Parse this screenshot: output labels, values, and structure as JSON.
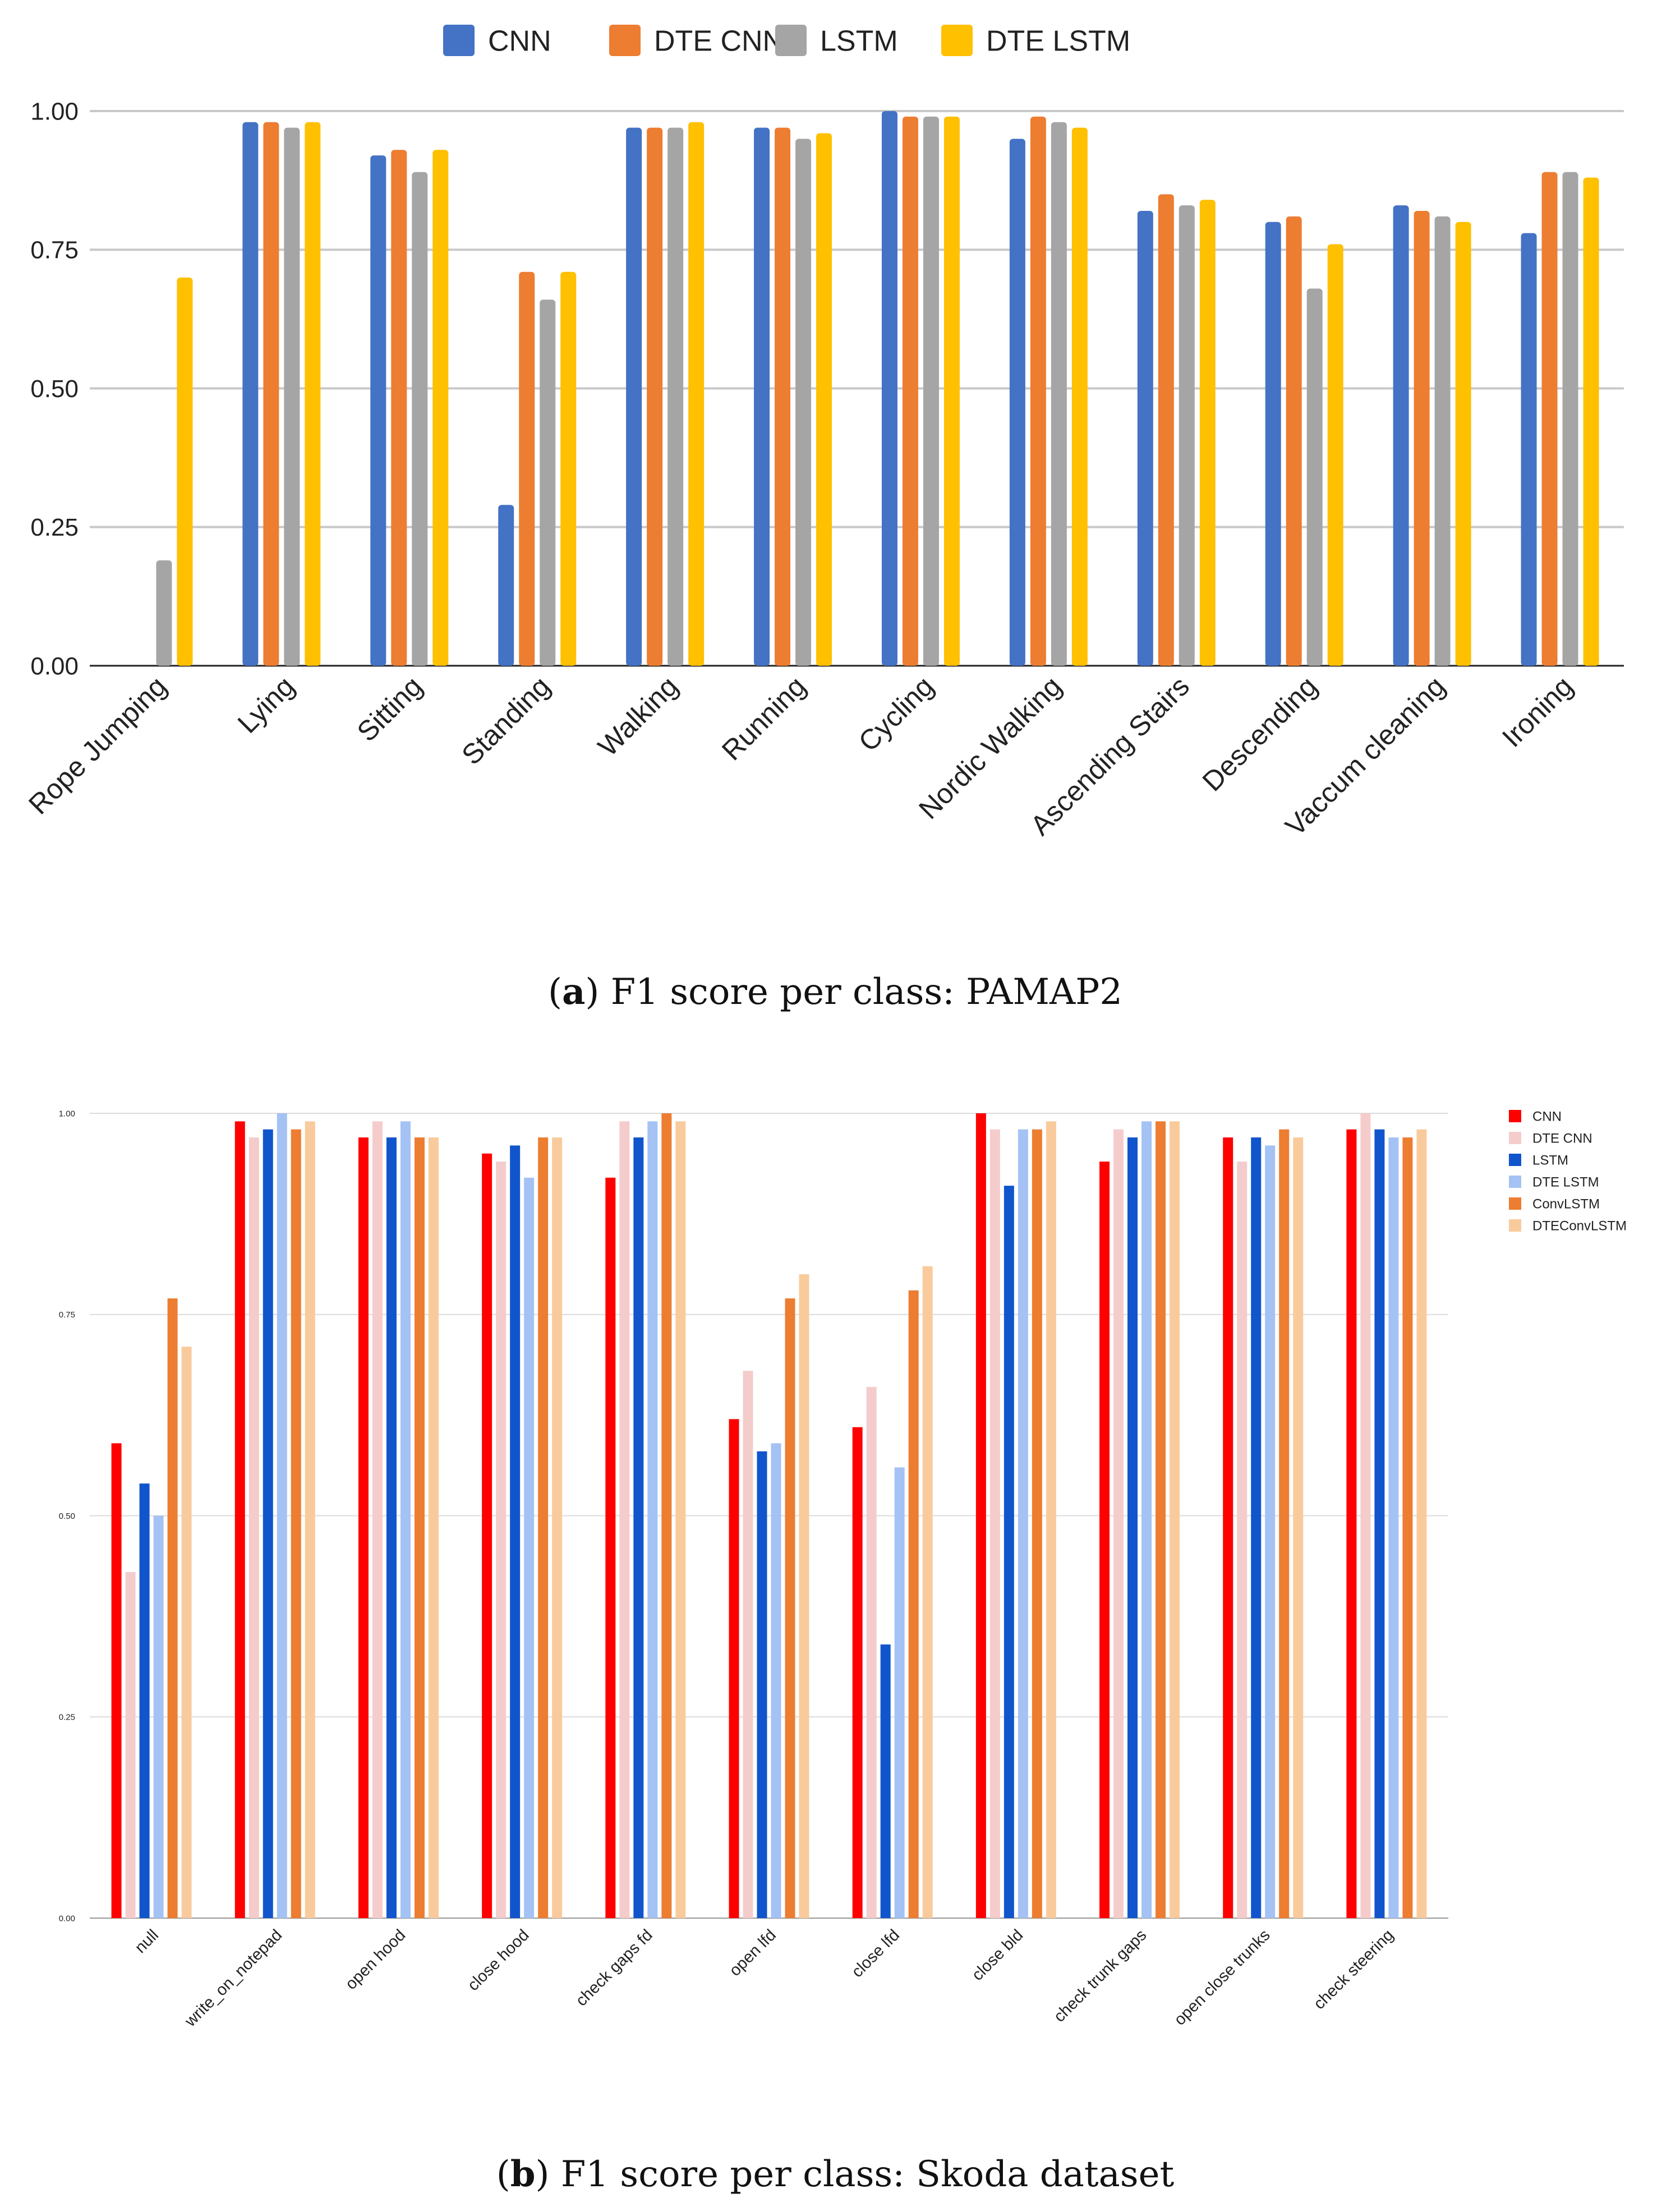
{
  "chart_data": [
    {
      "type": "bar",
      "caption_label": "a",
      "caption_text": "F1 score per class: PAMAP2",
      "legend_position": "top",
      "ylim": [
        0,
        1
      ],
      "ytick_values": [
        0,
        0.25,
        0.5,
        0.75,
        1
      ],
      "ytick_labels": [
        "0.00",
        "0.25",
        "0.50",
        "0.75",
        "1.00"
      ],
      "grid": true,
      "categories": [
        "Rope Jumping",
        "Lying",
        "Sitting",
        "Standing",
        "Walking",
        "Running",
        "Cycling",
        "Nordic Walking",
        "Ascending Stairs",
        "Descending",
        "Vaccum cleaning",
        "Ironing"
      ],
      "series": [
        {
          "name": "CNN",
          "color": "#4472c4",
          "values": [
            0,
            0.98,
            0.92,
            0.29,
            0.97,
            0.97,
            1.0,
            0.95,
            0.82,
            0.8,
            0.83,
            0.78
          ]
        },
        {
          "name": "DTE CNN",
          "color": "#ed7d31",
          "values": [
            0,
            0.98,
            0.93,
            0.71,
            0.97,
            0.97,
            0.99,
            0.99,
            0.85,
            0.81,
            0.82,
            0.89
          ]
        },
        {
          "name": "LSTM",
          "color": "#a5a5a5",
          "values": [
            0.19,
            0.97,
            0.89,
            0.66,
            0.97,
            0.95,
            0.99,
            0.98,
            0.83,
            0.68,
            0.81,
            0.89
          ]
        },
        {
          "name": "DTE LSTM",
          "color": "#ffc000",
          "values": [
            0.7,
            0.98,
            0.93,
            0.71,
            0.98,
            0.96,
            0.99,
            0.97,
            0.84,
            0.76,
            0.8,
            0.88
          ]
        }
      ]
    },
    {
      "type": "bar",
      "caption_label": "b",
      "caption_text": "F1 score per class: Skoda dataset",
      "legend_position": "right",
      "ylim": [
        0,
        1
      ],
      "ytick_values": [
        0,
        0.25,
        0.5,
        0.75,
        1
      ],
      "ytick_labels": [
        "0.00",
        "0.25",
        "0.50",
        "0.75",
        "1.00"
      ],
      "grid": true,
      "categories": [
        "null",
        "write_on_notepad",
        "open hood",
        "close hood",
        "check gaps fd",
        "open lfd",
        "close lfd",
        "close bld",
        "check trunk gaps",
        "open close trunks",
        "check steering"
      ],
      "series": [
        {
          "name": "CNN",
          "color": "#ff0000",
          "values": [
            0.59,
            0.99,
            0.97,
            0.95,
            0.92,
            0.62,
            0.61,
            1.0,
            0.94,
            0.97,
            0.98
          ]
        },
        {
          "name": "DTE CNN",
          "color": "#f4cccc",
          "values": [
            0.43,
            0.97,
            0.99,
            0.94,
            0.99,
            0.68,
            0.66,
            0.98,
            0.98,
            0.94,
            1.0
          ]
        },
        {
          "name": "LSTM",
          "color": "#1155cc",
          "values": [
            0.54,
            0.98,
            0.97,
            0.96,
            0.97,
            0.58,
            0.34,
            0.91,
            0.97,
            0.97,
            0.98
          ]
        },
        {
          "name": "DTE LSTM",
          "color": "#a4c2f4",
          "values": [
            0.5,
            1.0,
            0.99,
            0.92,
            0.99,
            0.59,
            0.56,
            0.98,
            0.99,
            0.96,
            0.97
          ]
        },
        {
          "name": "ConvLSTM",
          "color": "#ed7d31",
          "values": [
            0.77,
            0.98,
            0.97,
            0.97,
            1.0,
            0.77,
            0.78,
            0.98,
            0.99,
            0.98,
            0.97
          ]
        },
        {
          "name": "DTEConvLSTM",
          "color": "#f9cb9c",
          "values": [
            0.71,
            0.99,
            0.97,
            0.97,
            0.99,
            0.8,
            0.81,
            0.99,
            0.99,
            0.97,
            0.98
          ]
        }
      ]
    }
  ]
}
